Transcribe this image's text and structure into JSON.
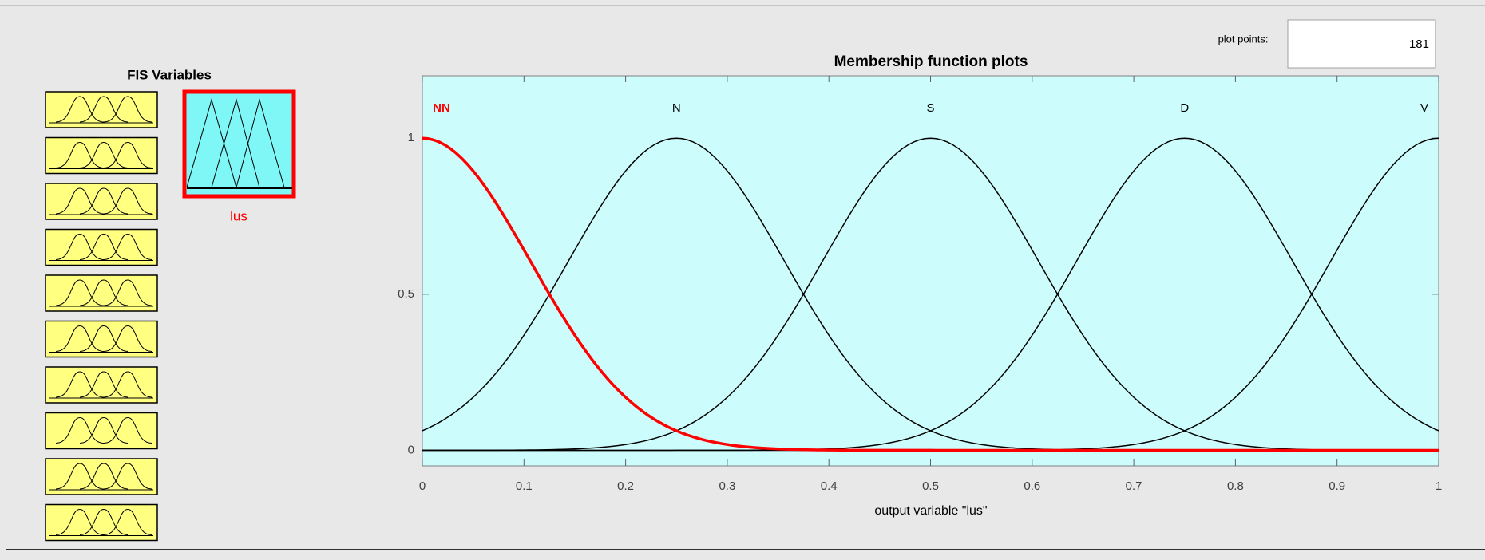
{
  "panel": {
    "title": "FIS Variables",
    "output_variable": "lus"
  },
  "plot_points_label": "plot points:",
  "plot_points": 181,
  "chart_data": {
    "type": "line",
    "title": "Membership function plots",
    "xlabel": "output variable \"lus\"",
    "xlim": [
      0,
      1
    ],
    "ylim": [
      -0.05,
      1.2
    ],
    "xticks": [
      0,
      0.1,
      0.2,
      0.3,
      0.4,
      0.5,
      0.6,
      0.7,
      0.8,
      0.9,
      1
    ],
    "yticks": [
      0,
      0.5,
      1
    ],
    "series": [
      {
        "name": "NN",
        "color": "#ff0000",
        "mf": "gaussmf",
        "params": [
          0.1062,
          0
        ]
      },
      {
        "name": "N",
        "color": "#000000",
        "mf": "gaussmf",
        "params": [
          0.1062,
          0.25
        ]
      },
      {
        "name": "S",
        "color": "#000000",
        "mf": "gaussmf",
        "params": [
          0.1062,
          0.5
        ]
      },
      {
        "name": "D",
        "color": "#000000",
        "mf": "gaussmf",
        "params": [
          0.1062,
          0.75
        ]
      },
      {
        "name": "V",
        "color": "#000000",
        "mf": "gaussmf",
        "params": [
          0.1062,
          1
        ]
      }
    ],
    "selected": 0
  }
}
